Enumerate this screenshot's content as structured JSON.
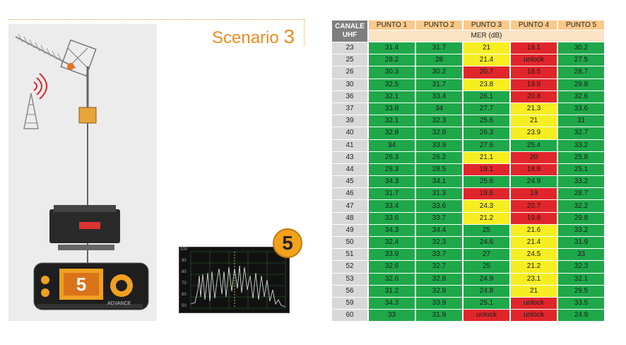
{
  "scenario": {
    "label": "Scenario",
    "number": "3"
  },
  "badge": "5",
  "meter": {
    "display_value": "5",
    "brand_text": "ADVANCE"
  },
  "spectrum": {
    "y_ticks": [
      "100",
      "90",
      "80",
      "70",
      "60",
      "50"
    ]
  },
  "table": {
    "channel_header": [
      "CANALE",
      "UHF"
    ],
    "points": [
      "PUNTO 1",
      "PUNTO 2",
      "PUNTO 3",
      "PUNTO 4",
      "PUNTO 5"
    ],
    "unit": "MER (dB)",
    "colors": {
      "good": "#1fa84a",
      "marginal": "#f7ee22",
      "bad": "#e1262b"
    },
    "rows": [
      {
        "ch": "23",
        "v": [
          "31.4",
          "31.7",
          "21",
          "19.1",
          "30.2"
        ],
        "s": [
          "g",
          "g",
          "y",
          "r",
          "g"
        ]
      },
      {
        "ch": "25",
        "v": [
          "28.2",
          "28",
          "21.4",
          "unlock",
          "27.5"
        ],
        "s": [
          "g",
          "g",
          "y",
          "r",
          "g"
        ]
      },
      {
        "ch": "26",
        "v": [
          "30.3",
          "30.2",
          "20.7",
          "18.5",
          "28.7"
        ],
        "s": [
          "g",
          "g",
          "r",
          "r",
          "g"
        ]
      },
      {
        "ch": "30",
        "v": [
          "32.5",
          "31.7",
          "23.8",
          "19.8",
          "29.8"
        ],
        "s": [
          "g",
          "g",
          "y",
          "r",
          "g"
        ]
      },
      {
        "ch": "36",
        "v": [
          "32.1",
          "33.4",
          "26.1",
          "20.8",
          "32.6"
        ],
        "s": [
          "g",
          "g",
          "g",
          "r",
          "g"
        ]
      },
      {
        "ch": "37",
        "v": [
          "33.8",
          "34",
          "27.7",
          "21.3",
          "33.6"
        ],
        "s": [
          "g",
          "g",
          "g",
          "y",
          "g"
        ]
      },
      {
        "ch": "39",
        "v": [
          "32.1",
          "32.3",
          "25.6",
          "21",
          "31"
        ],
        "s": [
          "g",
          "g",
          "g",
          "y",
          "g"
        ]
      },
      {
        "ch": "40",
        "v": [
          "32.8",
          "32.9",
          "26.3",
          "23.9",
          "32.7"
        ],
        "s": [
          "g",
          "g",
          "g",
          "y",
          "g"
        ]
      },
      {
        "ch": "41",
        "v": [
          "34",
          "33.9",
          "27.6",
          "25.4",
          "33.2"
        ],
        "s": [
          "g",
          "g",
          "g",
          "g",
          "g"
        ]
      },
      {
        "ch": "43",
        "v": [
          "26.3",
          "26.2",
          "21.1",
          "20",
          "25.8"
        ],
        "s": [
          "g",
          "g",
          "y",
          "r",
          "g"
        ]
      },
      {
        "ch": "44",
        "v": [
          "28.3",
          "28.5",
          "19.1",
          "18.8",
          "25.1"
        ],
        "s": [
          "g",
          "g",
          "r",
          "r",
          "g"
        ]
      },
      {
        "ch": "45",
        "v": [
          "34.3",
          "34.1",
          "25.6",
          "24.9",
          "33.2"
        ],
        "s": [
          "g",
          "g",
          "g",
          "g",
          "g"
        ]
      },
      {
        "ch": "46",
        "v": [
          "31.7",
          "31.3",
          "19.6",
          "19",
          "28.7"
        ],
        "s": [
          "g",
          "g",
          "r",
          "r",
          "g"
        ]
      },
      {
        "ch": "47",
        "v": [
          "33.4",
          "33.6",
          "24.3",
          "20.7",
          "32.2"
        ],
        "s": [
          "g",
          "g",
          "y",
          "r",
          "g"
        ]
      },
      {
        "ch": "48",
        "v": [
          "33.6",
          "33.7",
          "21.2",
          "19.8",
          "29.8"
        ],
        "s": [
          "g",
          "g",
          "y",
          "r",
          "g"
        ]
      },
      {
        "ch": "49",
        "v": [
          "34.3",
          "34.4",
          "25",
          "21.6",
          "33.2"
        ],
        "s": [
          "g",
          "g",
          "g",
          "y",
          "g"
        ]
      },
      {
        "ch": "50",
        "v": [
          "32.4",
          "32.3",
          "24.6",
          "21.4",
          "31.9"
        ],
        "s": [
          "g",
          "g",
          "g",
          "y",
          "g"
        ]
      },
      {
        "ch": "51",
        "v": [
          "33.9",
          "33.7",
          "27",
          "24.5",
          "33"
        ],
        "s": [
          "g",
          "g",
          "g",
          "y",
          "g"
        ]
      },
      {
        "ch": "52",
        "v": [
          "32.6",
          "32.7",
          "25",
          "21.2",
          "32.3"
        ],
        "s": [
          "g",
          "g",
          "g",
          "y",
          "g"
        ]
      },
      {
        "ch": "53",
        "v": [
          "32.6",
          "32.8",
          "24.9",
          "23.1",
          "32.1"
        ],
        "s": [
          "g",
          "g",
          "g",
          "y",
          "g"
        ]
      },
      {
        "ch": "56",
        "v": [
          "31.2",
          "32.9",
          "24.8",
          "21",
          "29.5"
        ],
        "s": [
          "g",
          "g",
          "g",
          "y",
          "g"
        ]
      },
      {
        "ch": "59",
        "v": [
          "34.3",
          "33.9",
          "25.1",
          "unlock",
          "33.5"
        ],
        "s": [
          "g",
          "g",
          "g",
          "r",
          "g"
        ]
      },
      {
        "ch": "60",
        "v": [
          "33",
          "31.9",
          "unlock",
          "unlock",
          "24.9"
        ],
        "s": [
          "g",
          "g",
          "r",
          "r",
          "g"
        ]
      }
    ]
  }
}
